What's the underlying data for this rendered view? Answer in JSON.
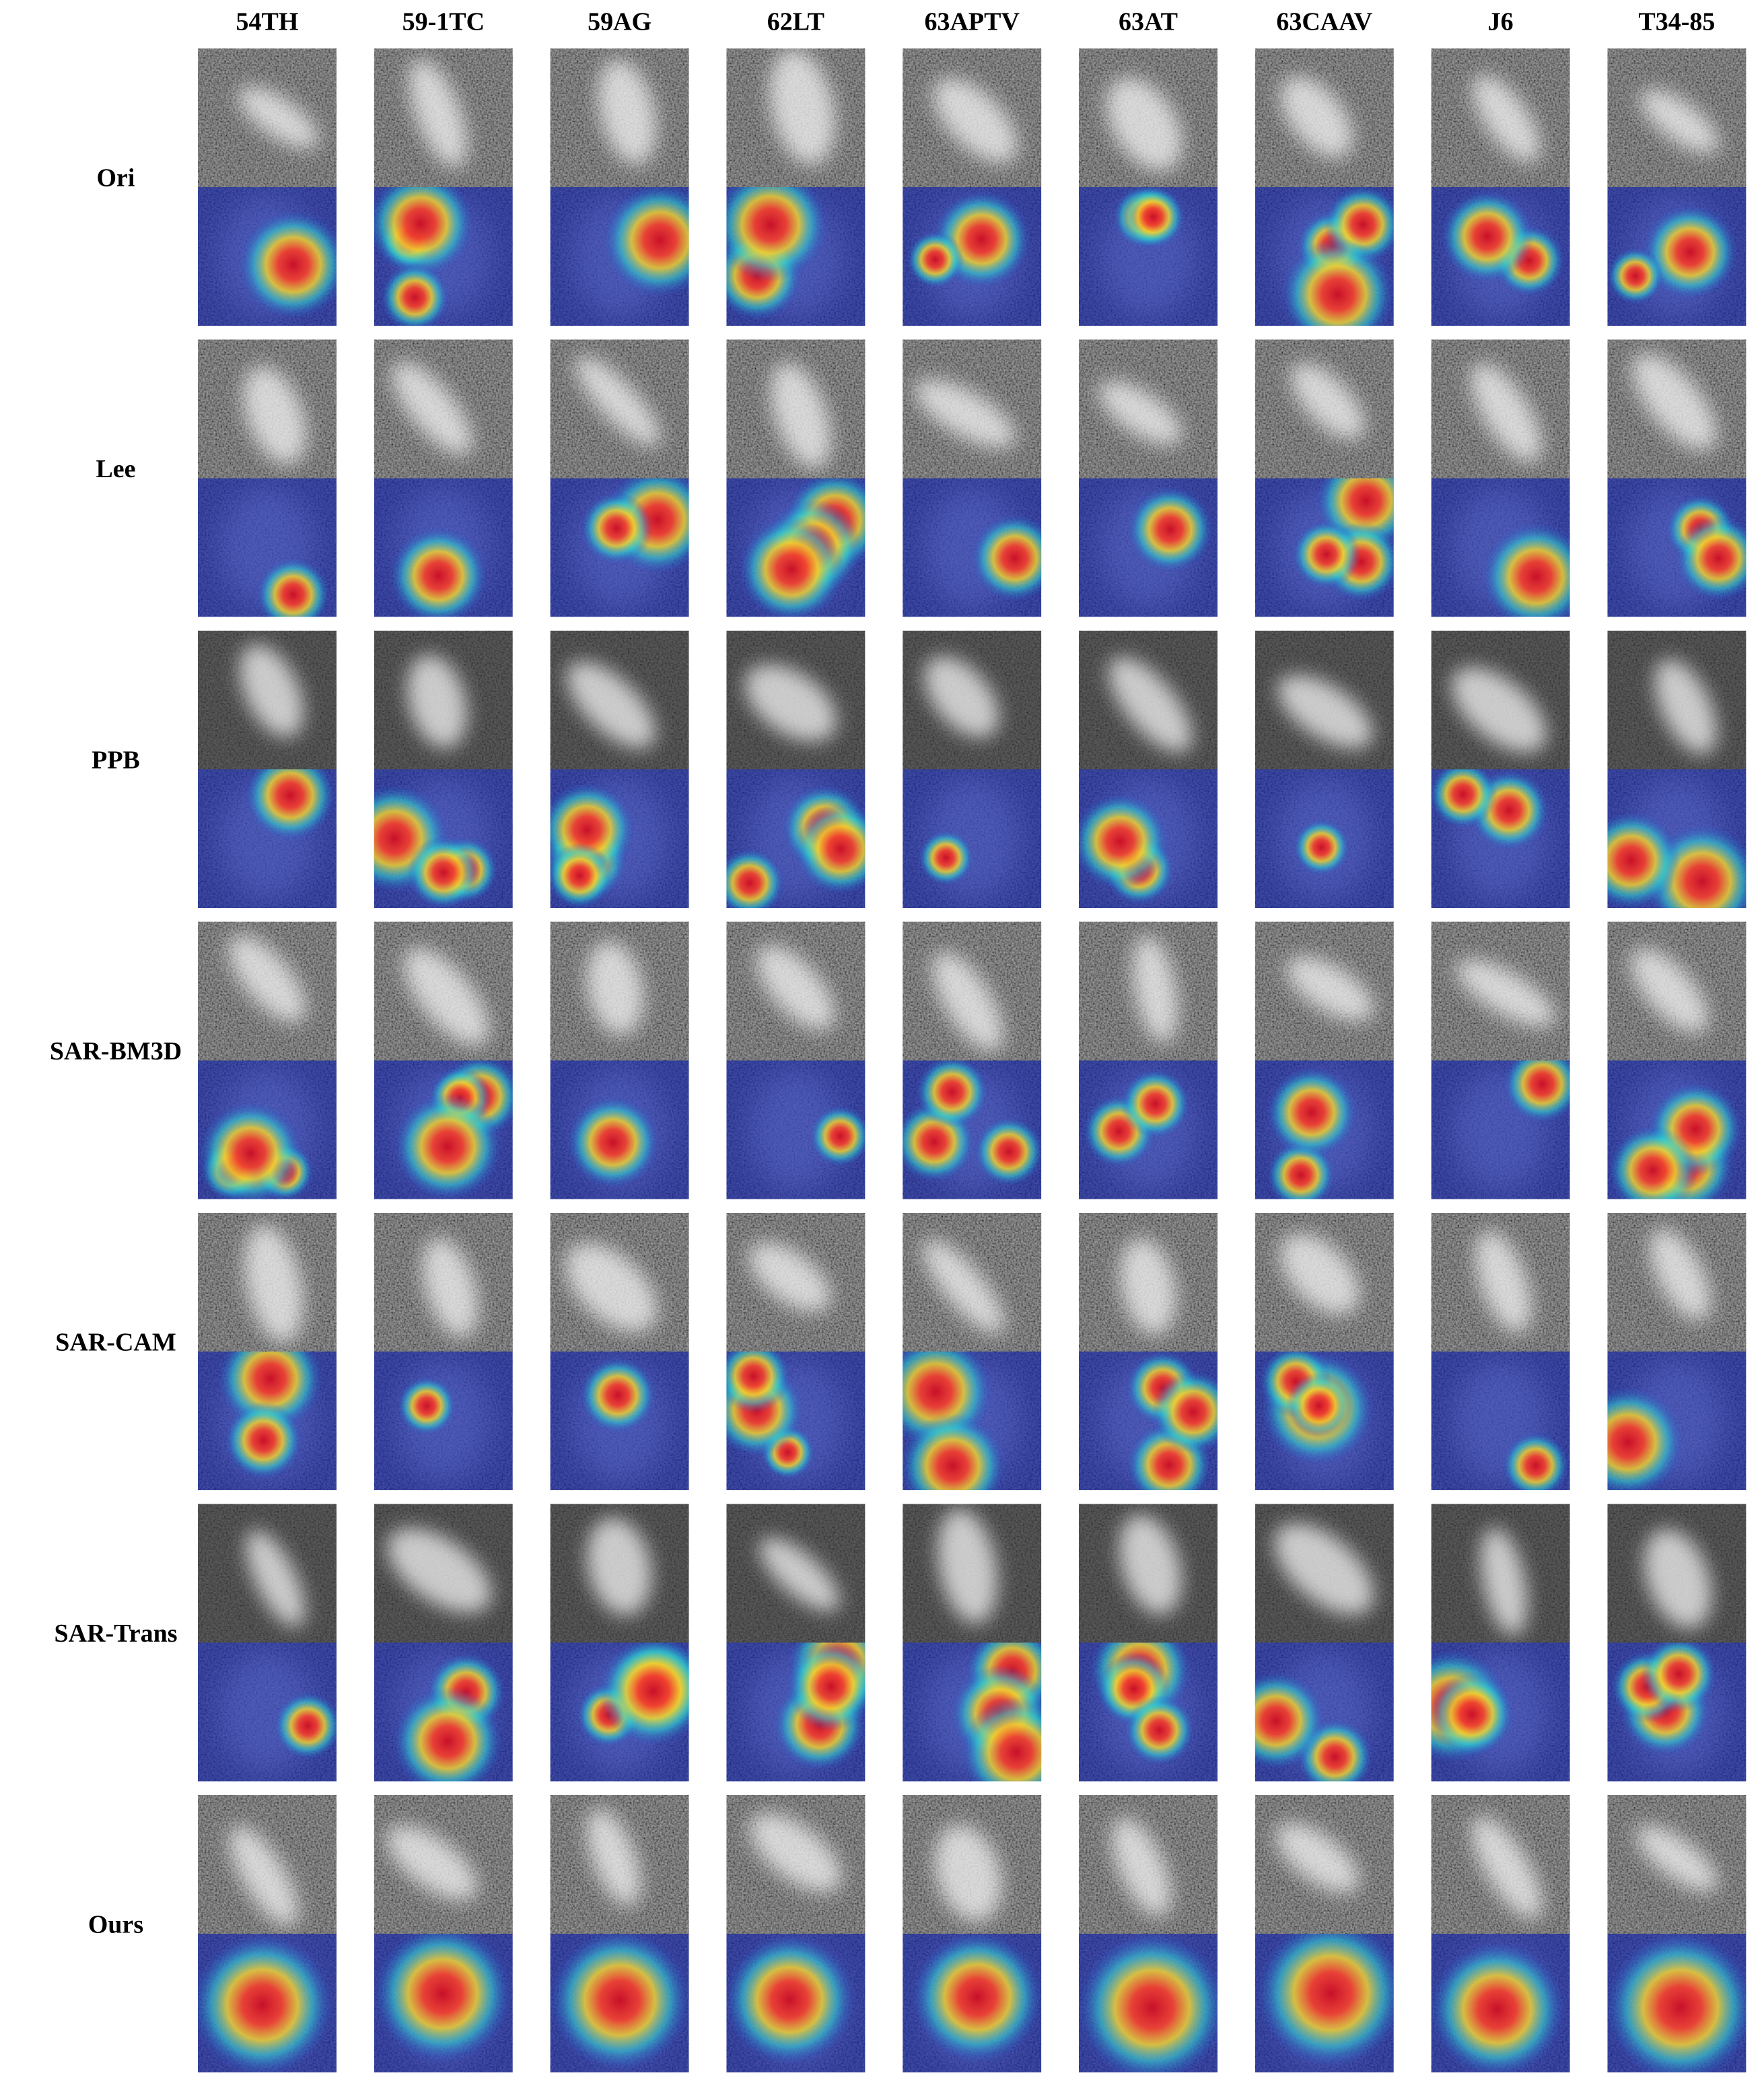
{
  "columns": [
    "54TH",
    "59-1TC",
    "59AG",
    "62LT",
    "63APTV",
    "63AT",
    "63CAAV",
    "J6",
    "T34-85"
  ],
  "rows": [
    "Ori",
    "Lee",
    "PPB",
    "SAR-BM3D",
    "SAR-CAM",
    "SAR-Trans",
    "Ours"
  ]
}
